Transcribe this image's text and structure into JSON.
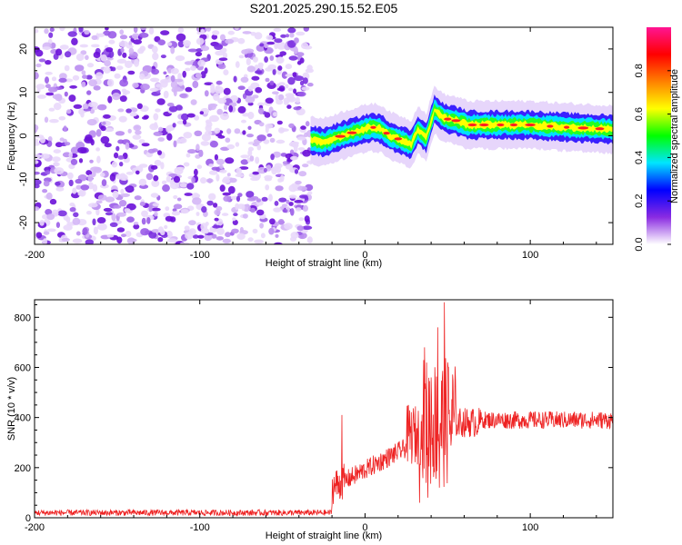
{
  "title": "S201.2025.290.15.52.E05",
  "chart_data": [
    {
      "type": "heatmap",
      "xlabel": "Height of straight line (km)",
      "ylabel": "Frequency (Hz)",
      "xlim": [
        -200,
        150
      ],
      "ylim": [
        -25,
        25
      ],
      "x_ticks": [
        -200,
        -100,
        0,
        100
      ],
      "y_ticks": [
        -20,
        -10,
        0,
        10,
        20
      ],
      "noise_region_x": [
        -200,
        -33
      ],
      "signal_track": [
        {
          "x": -33,
          "y": -1.0
        },
        {
          "x": -25,
          "y": -1.5
        },
        {
          "x": -18,
          "y": -0.5
        },
        {
          "x": -10,
          "y": 0.5
        },
        {
          "x": -3,
          "y": 1.2
        },
        {
          "x": 4,
          "y": 2.0
        },
        {
          "x": 10,
          "y": 1.5
        },
        {
          "x": 15,
          "y": 0.0
        },
        {
          "x": 22,
          "y": -1.0
        },
        {
          "x": 28,
          "y": -2.0
        },
        {
          "x": 32,
          "y": 1.5
        },
        {
          "x": 37,
          "y": -0.5
        },
        {
          "x": 42,
          "y": 6.0
        },
        {
          "x": 48,
          "y": 4.0
        },
        {
          "x": 55,
          "y": 3.5
        },
        {
          "x": 62,
          "y": 2.5
        },
        {
          "x": 80,
          "y": 2.5
        },
        {
          "x": 100,
          "y": 2.5
        },
        {
          "x": 120,
          "y": 2.0
        },
        {
          "x": 150,
          "y": 1.5
        }
      ],
      "colorbar": {
        "label": "Normalized spectral amplitude",
        "ticks": [
          0.0,
          0.2,
          0.4,
          0.6,
          0.8
        ],
        "colors": [
          "#ffffff",
          "#8a2be2",
          "#0000ff",
          "#00e5ff",
          "#00ff00",
          "#ffff00",
          "#ff8000",
          "#ff0000",
          "#ff1493"
        ]
      }
    },
    {
      "type": "line",
      "xlabel": "Height of straight line (km)",
      "ylabel": "SNR (10 * v/v)",
      "xlim": [
        -200,
        150
      ],
      "ylim": [
        0,
        870
      ],
      "x_ticks": [
        -200,
        -100,
        0,
        100
      ],
      "y_ticks": [
        0,
        200,
        400,
        600,
        800
      ],
      "color": "#ee2222",
      "segments": [
        {
          "x": [
            -200,
            -20
          ],
          "baseline": 20,
          "noise": 12
        },
        {
          "x": [
            -20,
            -12
          ],
          "baseline": 160,
          "noise": 70
        },
        {
          "x": [
            -12,
            0
          ],
          "baseline": 220,
          "noise": 40
        },
        {
          "x": [
            0,
            25
          ],
          "baseline": 270,
          "noise": 40
        },
        {
          "x": [
            25,
            35
          ],
          "baseline": 330,
          "noise": 120
        },
        {
          "x": [
            35,
            55
          ],
          "baseline": 380,
          "noise": 260
        },
        {
          "x": [
            55,
            70
          ],
          "baseline": 380,
          "noise": 60
        },
        {
          "x": [
            70,
            150
          ],
          "baseline": 390,
          "noise": 35
        }
      ],
      "spikes": [
        {
          "x": -14,
          "y": 410
        },
        {
          "x": 36,
          "y": 680
        },
        {
          "x": 40,
          "y": 560
        },
        {
          "x": 44,
          "y": 760
        },
        {
          "x": 48,
          "y": 860
        },
        {
          "x": 50,
          "y": 620
        },
        {
          "x": 33,
          "y": 60
        },
        {
          "x": 38,
          "y": 80
        },
        {
          "x": 45,
          "y": 120
        }
      ]
    }
  ]
}
